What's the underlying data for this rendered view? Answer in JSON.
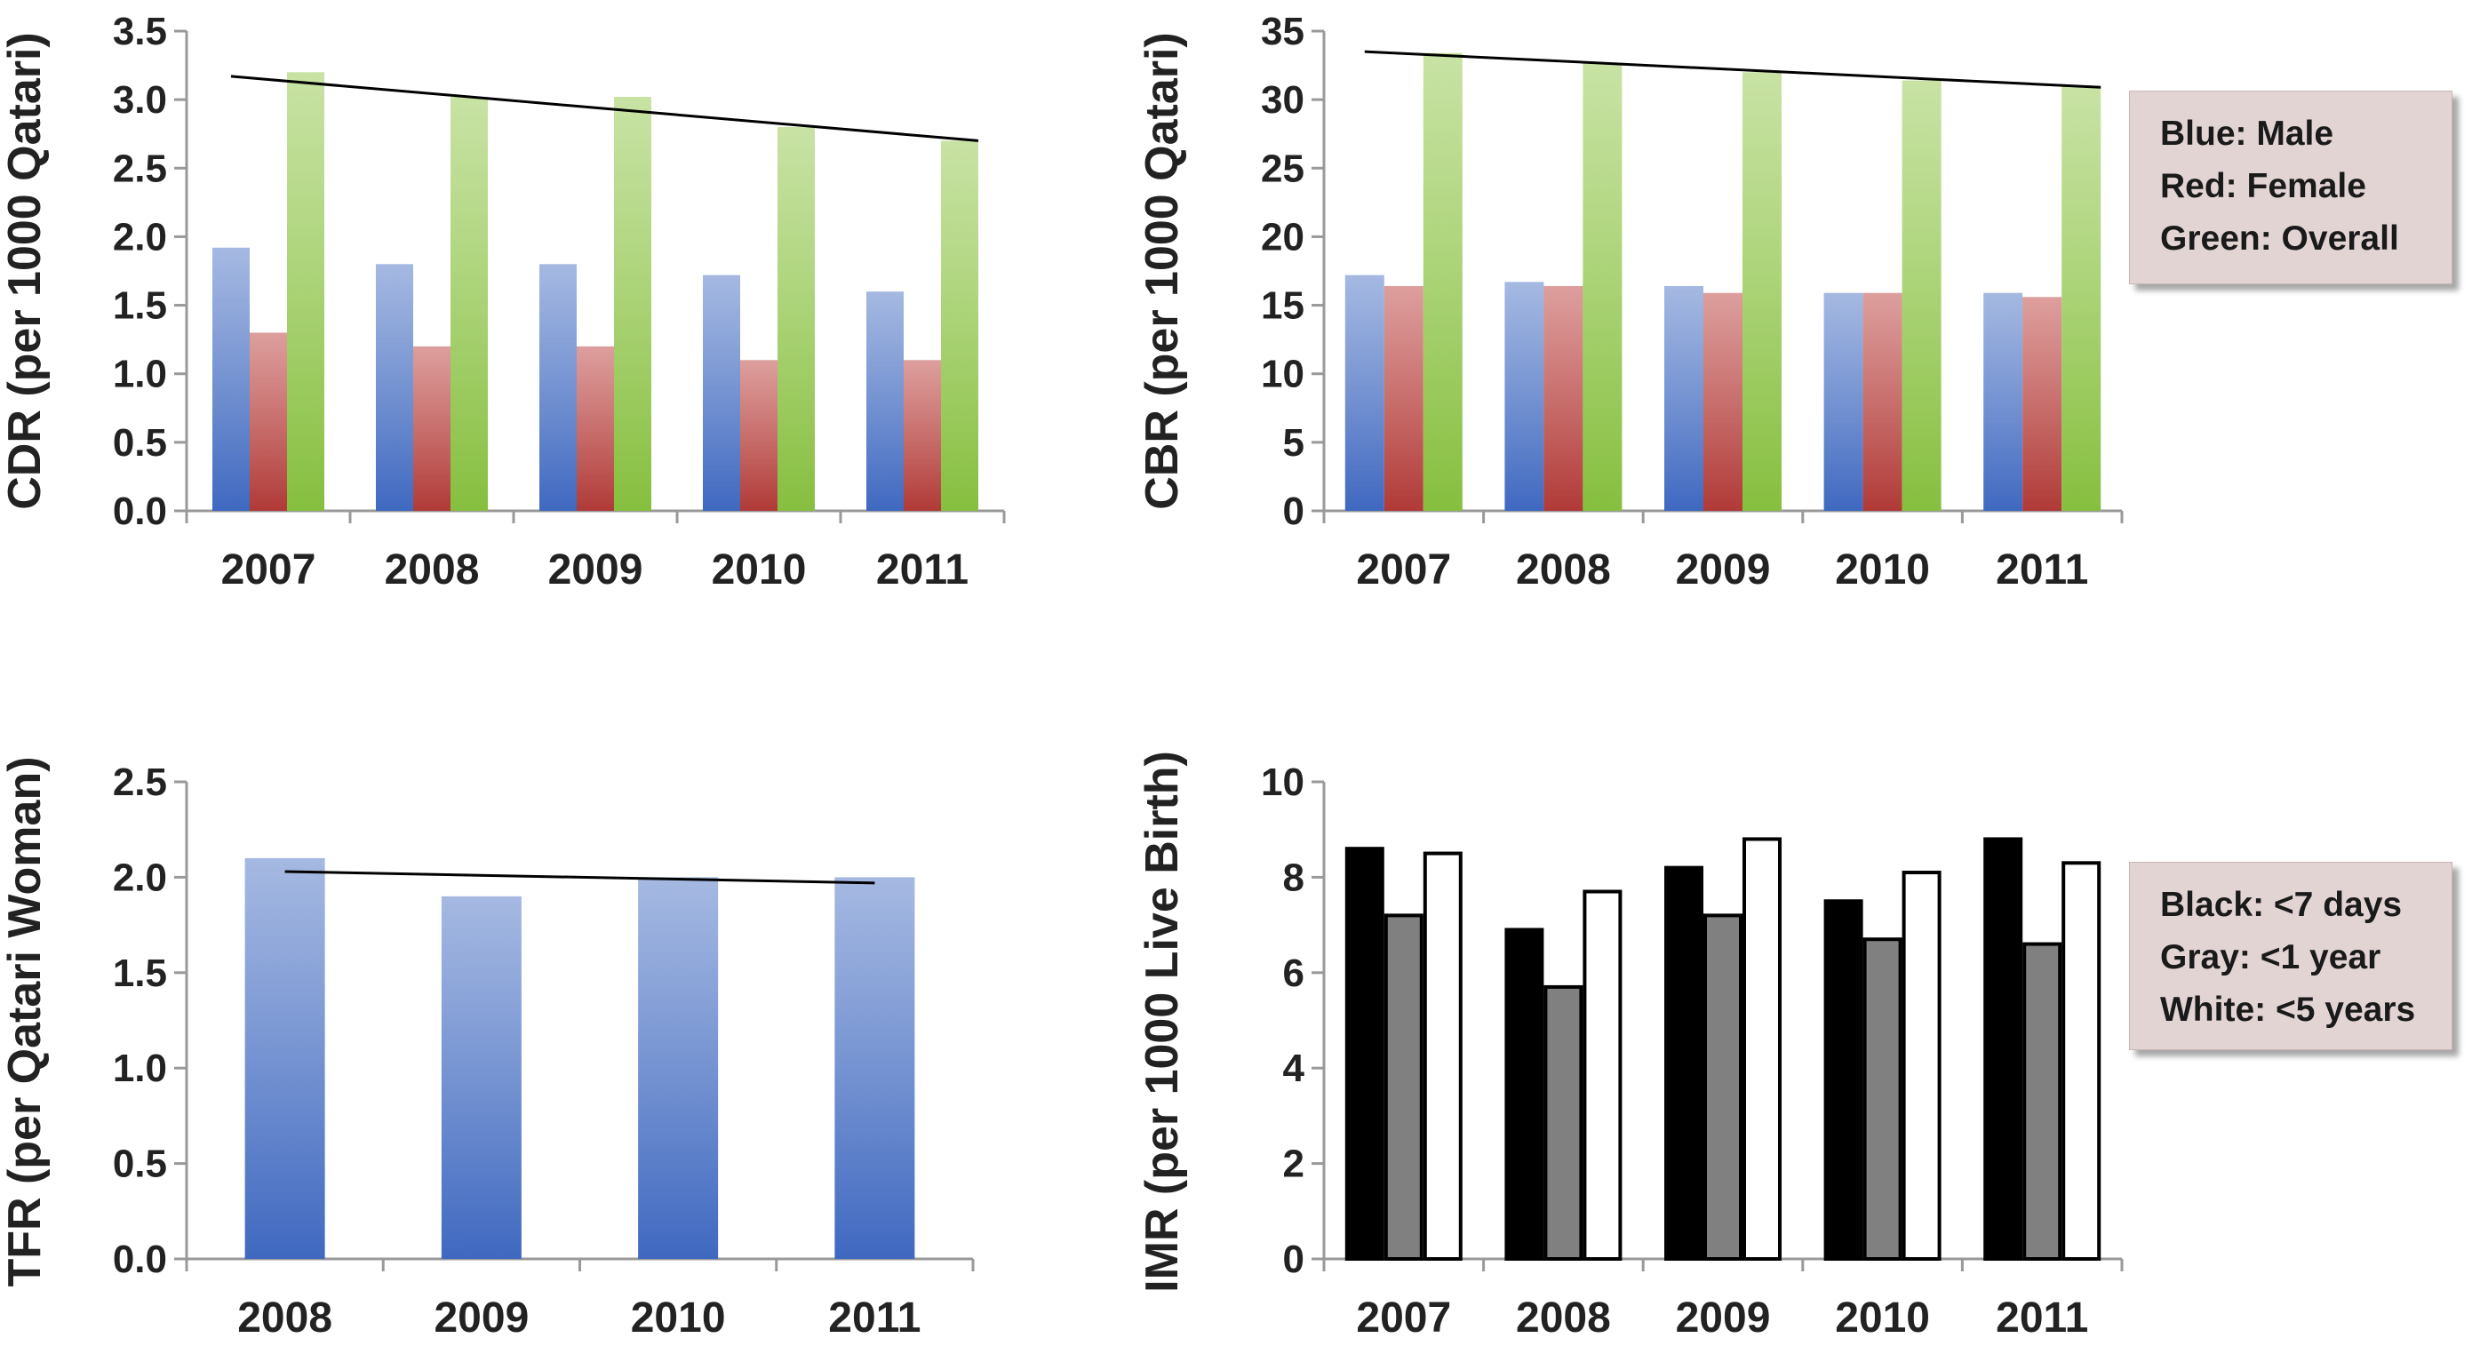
{
  "colors": {
    "male": "#5b7fc9",
    "female": "#c0504d",
    "overall": "#9bcb5a",
    "tfr": "#5b7fc9",
    "lt7days": "#000000",
    "lt1year": "#808080",
    "lt5years": "#ffffff",
    "trendline": "#000000",
    "axis": "#999999",
    "legend_bg": "#e3d4d4"
  },
  "legends": {
    "top": [
      "Blue: Male",
      "Red: Female",
      "Green:  Overall"
    ],
    "bottom": [
      "Black: <7 days",
      "Gray: <1 year",
      "White: <5 years"
    ]
  },
  "chart_data": [
    {
      "id": "cdr",
      "type": "bar",
      "ylabel": "CDR (per 1000 Qatari)",
      "categories": [
        "2007",
        "2008",
        "2009",
        "2010",
        "2011"
      ],
      "ylim": [
        0,
        3.5
      ],
      "yticks": [
        "0.0",
        "0.5",
        "1.0",
        "1.5",
        "2.0",
        "2.5",
        "3.0",
        "3.5"
      ],
      "series": [
        {
          "key": "male",
          "values": [
            1.92,
            1.8,
            1.8,
            1.72,
            1.6
          ]
        },
        {
          "key": "female",
          "values": [
            1.3,
            1.2,
            1.2,
            1.1,
            1.1
          ]
        },
        {
          "key": "overall",
          "values": [
            3.2,
            3.02,
            3.02,
            2.8,
            2.7
          ]
        }
      ],
      "trendline": {
        "from": {
          "category": "2007",
          "value": 3.17
        },
        "to": {
          "category": "2011",
          "value": 2.7
        }
      }
    },
    {
      "id": "cbr",
      "type": "bar",
      "ylabel": "CBR (per 1000 Qatari)",
      "categories": [
        "2007",
        "2008",
        "2009",
        "2010",
        "2011"
      ],
      "ylim": [
        0,
        35
      ],
      "yticks": [
        "0",
        "5",
        "10",
        "15",
        "20",
        "25",
        "30",
        "35"
      ],
      "series": [
        {
          "key": "male",
          "values": [
            17.2,
            16.7,
            16.4,
            15.9,
            15.9
          ]
        },
        {
          "key": "female",
          "values": [
            16.4,
            16.4,
            15.9,
            15.9,
            15.6
          ]
        },
        {
          "key": "overall",
          "values": [
            33.4,
            32.7,
            32.0,
            31.4,
            31.0
          ]
        }
      ],
      "trendline": {
        "from": {
          "category": "2007",
          "value": 33.5
        },
        "to": {
          "category": "2011",
          "value": 30.9
        }
      }
    },
    {
      "id": "tfr",
      "type": "bar",
      "ylabel": "TFR (per Qatari Woman)",
      "categories": [
        "2008",
        "2009",
        "2010",
        "2011"
      ],
      "ylim": [
        0,
        2.5
      ],
      "yticks": [
        "0.0",
        "0.5",
        "1.0",
        "1.5",
        "2.0",
        "2.5"
      ],
      "series": [
        {
          "key": "tfr",
          "values": [
            2.1,
            1.9,
            2.0,
            2.0
          ]
        }
      ],
      "trendline": {
        "from": {
          "category": "2008",
          "value": 2.03
        },
        "to": {
          "category": "2011",
          "value": 1.97
        }
      }
    },
    {
      "id": "imr",
      "type": "bar",
      "ylabel": "IMR (per 1000 Live Birth)",
      "categories": [
        "2007",
        "2008",
        "2009",
        "2010",
        "2011"
      ],
      "ylim": [
        0,
        10
      ],
      "yticks": [
        "0",
        "2",
        "4",
        "6",
        "8",
        "10"
      ],
      "series": [
        {
          "key": "lt7days",
          "values": [
            8.6,
            6.9,
            8.2,
            7.5,
            8.8
          ]
        },
        {
          "key": "lt1year",
          "values": [
            7.2,
            5.7,
            7.2,
            6.7,
            6.6
          ]
        },
        {
          "key": "lt5years",
          "values": [
            8.5,
            7.7,
            8.8,
            8.1,
            8.3
          ]
        }
      ]
    }
  ]
}
